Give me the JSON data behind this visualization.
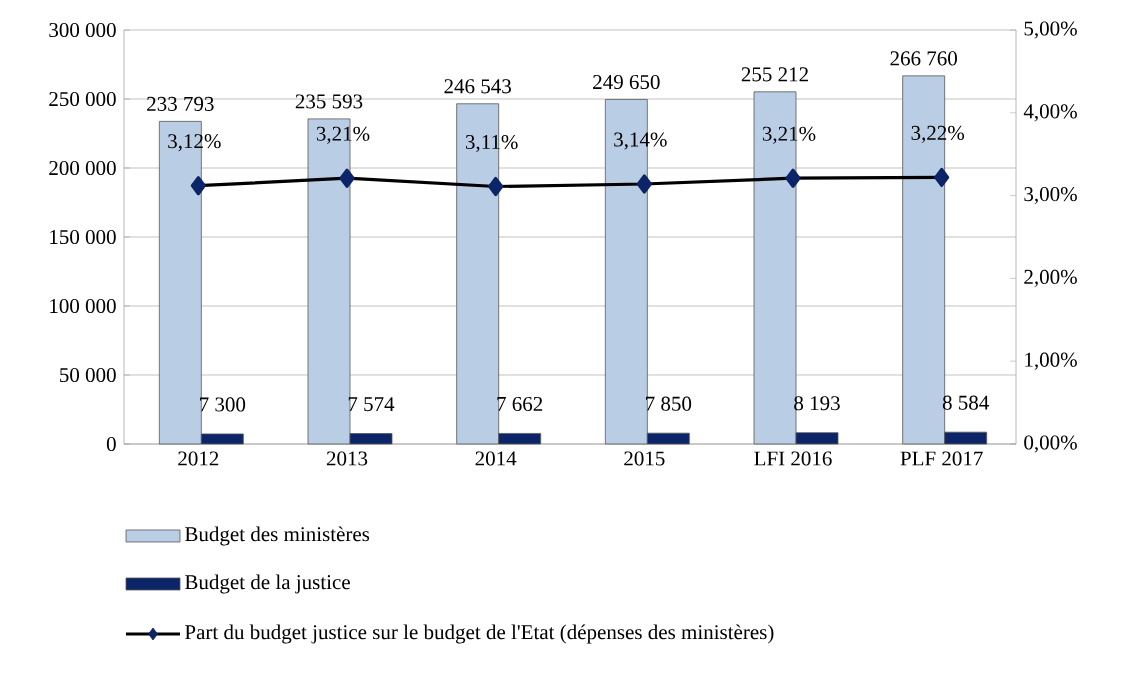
{
  "chart_data": {
    "type": "bar",
    "categories": [
      "2012",
      "2013",
      "2014",
      "2015",
      "LFI 2016",
      "PLF 2017"
    ],
    "series": [
      {
        "name": "Budget des ministères",
        "color": "#b9cde5",
        "values": [
          233793,
          235593,
          246543,
          249650,
          255212,
          266760
        ],
        "value_labels": [
          "233 793",
          "235 593",
          "246 543",
          "249 650",
          "255 212",
          "266 760"
        ]
      },
      {
        "name": "Budget de la justice",
        "color": "#0c2468",
        "values": [
          7300,
          7574,
          7662,
          7850,
          8193,
          8584
        ],
        "value_labels": [
          "7 300",
          "7 574",
          "7 662",
          "7 850",
          "8 193",
          "8 584"
        ]
      },
      {
        "name": "Part du budget justice sur le budget de l'Etat (dépenses des ministères)",
        "type": "line",
        "axis": "y2",
        "color": "#000000",
        "marker": "diamond",
        "values": [
          3.12,
          3.21,
          3.11,
          3.14,
          3.21,
          3.22
        ],
        "value_labels": [
          "3,12%",
          "3,21%",
          "3,11%",
          "3,14%",
          "3,21%",
          "3,22%"
        ]
      }
    ],
    "ylim": [
      0,
      300000
    ],
    "yticks": [
      0,
      {
        "value": 50000,
        "label": "50 000"
      },
      {
        "value": 100000,
        "label": "100 000"
      },
      {
        "value": 150000,
        "label": "150 000"
      },
      {
        "value": 200000,
        "label": "200 000"
      },
      {
        "value": 250000,
        "label": "250 000"
      },
      {
        "value": 300000,
        "label": "300 000"
      }
    ],
    "y2lim": [
      0,
      5
    ],
    "y2ticks": [
      {
        "value": 0,
        "label": "0,00%"
      },
      {
        "value": 1,
        "label": "1,00%"
      },
      {
        "value": 2,
        "label": "2,00%"
      },
      {
        "value": 3,
        "label": "3,00%"
      },
      {
        "value": 4,
        "label": "4,00%"
      },
      {
        "value": 5,
        "label": "5,00%"
      }
    ],
    "grid": "y",
    "legend": "bottom"
  }
}
